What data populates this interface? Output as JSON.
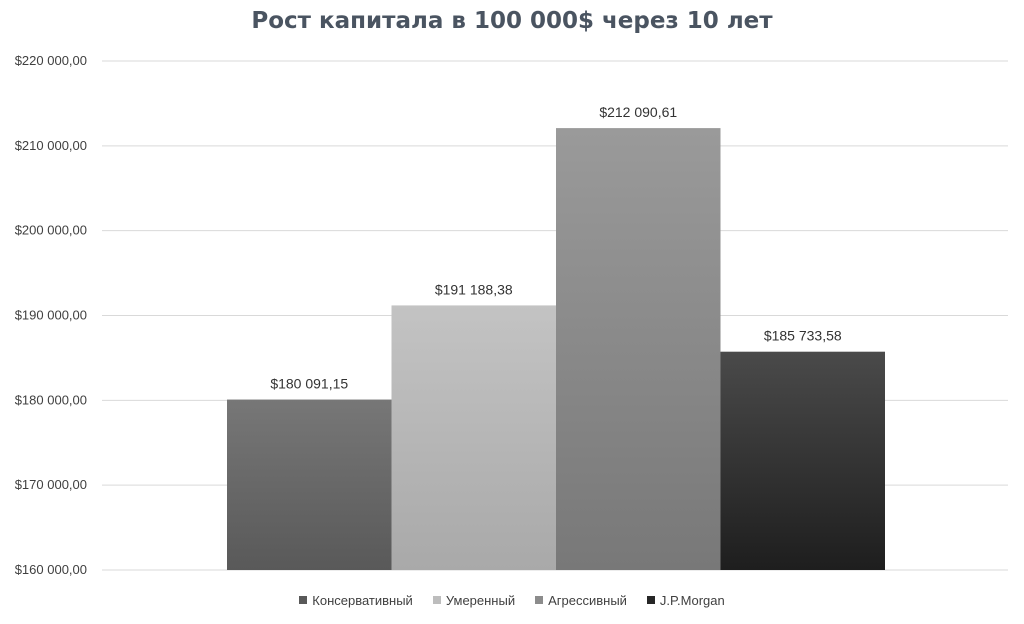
{
  "chart_data": {
    "type": "bar",
    "title": "Рост капитала в 100 000$ через 10 лет",
    "xlabel": "",
    "ylabel": "",
    "ylim": [
      160000,
      220000
    ],
    "y_ticks": [
      "$220 000,00",
      "$210 000,00",
      "$200 000,00",
      "$190 000,00",
      "$180 000,00",
      "$170 000,00",
      "$160 000,00"
    ],
    "y_tick_values": [
      220000,
      210000,
      200000,
      190000,
      180000,
      170000,
      160000
    ],
    "grid": true,
    "legend_position": "bottom",
    "series": [
      {
        "name": "Консервативный",
        "value": 180091.15,
        "label": "$180 091,15",
        "color_top": "#777777",
        "color_bottom": "#595959",
        "swatch": "#595959"
      },
      {
        "name": "Умеренный",
        "value": 191188.38,
        "label": "$191 188,38",
        "color_top": "#c3c3c3",
        "color_bottom": "#a9a9a9",
        "swatch": "#bdbdbd"
      },
      {
        "name": "Агрессивный",
        "value": 212090.61,
        "label": "$212 090,61",
        "color_top": "#9a9a9a",
        "color_bottom": "#787878",
        "swatch": "#8c8c8c"
      },
      {
        "name": "J.P.Morgan",
        "value": 185733.58,
        "label": "$185 733,58",
        "color_top": "#4a4a4a",
        "color_bottom": "#1e1e1e",
        "swatch": "#262626"
      }
    ]
  }
}
